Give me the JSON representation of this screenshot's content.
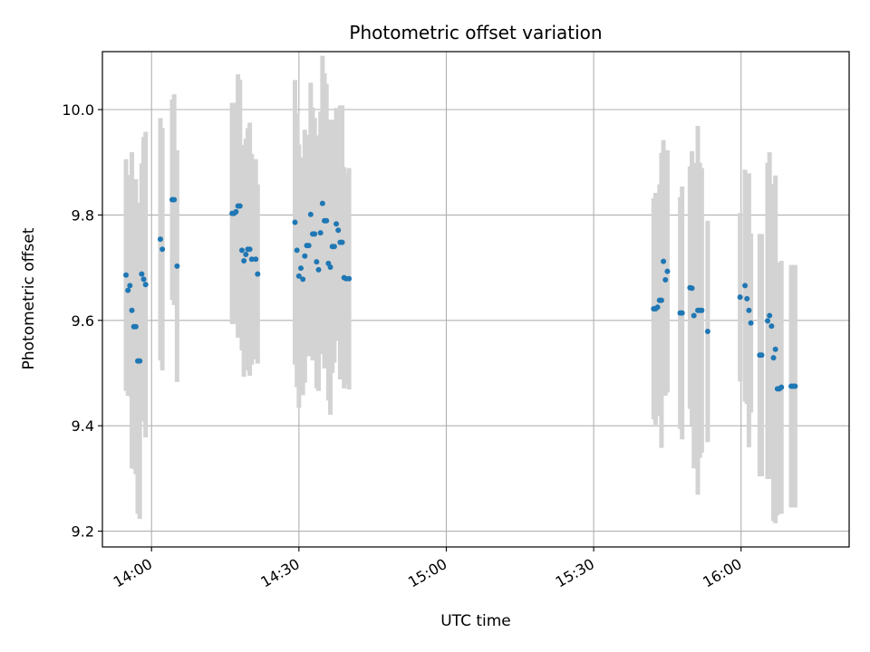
{
  "chart_data": {
    "type": "scatter",
    "title": "Photometric offset variation",
    "xlabel": "UTC time",
    "ylabel": "Photometric offset",
    "x_unit": "minutes after 00:00 UTC",
    "xlim": [
      "13:50",
      "16:22"
    ],
    "ylim": [
      9.17,
      10.11
    ],
    "x_ticks": [
      "14:00",
      "14:30",
      "15:00",
      "15:30",
      "16:00"
    ],
    "y_ticks": [
      "9.2",
      "9.4",
      "9.6",
      "9.8",
      "10.0"
    ],
    "grid": true,
    "marker_color": "#1f77b4",
    "errorbar_color": "#d3d3d3",
    "series": [
      {
        "x": [
          "13:54:48",
          "13:55:12",
          "13:55:36",
          "13:56:00",
          "13:56:24",
          "13:56:48",
          "13:57:12",
          "13:57:36",
          "13:58:00",
          "13:58:24",
          "13:58:48",
          "14:01:48",
          "14:02:12",
          "14:04:12",
          "14:04:36",
          "14:05:12",
          "14:16:24",
          "14:16:48",
          "14:17:12",
          "14:17:36",
          "14:18:00",
          "14:18:24",
          "14:18:48",
          "14:19:12",
          "14:19:36",
          "14:20:00",
          "14:20:24",
          "14:21:12",
          "14:21:36",
          "14:29:12",
          "14:29:36",
          "14:30:00",
          "14:30:24",
          "14:30:48",
          "14:31:12",
          "14:31:36",
          "14:32:00",
          "14:32:24",
          "14:32:48",
          "14:33:12",
          "14:33:36",
          "14:34:00",
          "14:34:24",
          "14:34:48",
          "14:35:12",
          "14:35:36",
          "14:36:00",
          "14:36:24",
          "14:36:48",
          "14:37:12",
          "14:37:36",
          "14:38:00",
          "14:38:24",
          "14:38:48",
          "14:39:12",
          "14:39:36",
          "14:40:12",
          "15:42:12",
          "15:42:36",
          "15:43:00",
          "15:43:24",
          "15:43:48",
          "15:44:12",
          "15:44:36",
          "15:45:00",
          "15:47:36",
          "15:48:00",
          "15:49:36",
          "15:50:00",
          "15:50:24",
          "15:51:12",
          "15:51:36",
          "15:52:00",
          "15:53:12",
          "15:59:48",
          "16:00:48",
          "16:01:12",
          "16:01:36",
          "16:02:00",
          "16:03:48",
          "16:04:12",
          "16:05:24",
          "16:05:48",
          "16:06:12",
          "16:06:36",
          "16:07:00",
          "16:07:24",
          "16:07:48",
          "16:08:12",
          "16:10:12",
          "16:10:36",
          "16:11:00"
        ],
        "y": [
          9.686,
          9.657,
          9.666,
          9.619,
          9.588,
          9.588,
          9.523,
          9.523,
          9.688,
          9.678,
          9.668,
          9.754,
          9.735,
          9.829,
          9.829,
          9.703,
          9.803,
          9.803,
          9.806,
          9.817,
          9.817,
          9.733,
          9.713,
          9.725,
          9.735,
          9.735,
          9.716,
          9.716,
          9.688,
          9.786,
          9.733,
          9.684,
          9.699,
          9.678,
          9.722,
          9.742,
          9.742,
          9.801,
          9.764,
          9.764,
          9.711,
          9.696,
          9.766,
          9.822,
          9.789,
          9.789,
          9.708,
          9.701,
          9.74,
          9.74,
          9.783,
          9.771,
          9.748,
          9.748,
          9.681,
          9.679,
          9.679,
          9.622,
          9.622,
          9.625,
          9.638,
          9.638,
          9.712,
          9.677,
          9.693,
          9.614,
          9.614,
          9.662,
          9.661,
          9.609,
          9.619,
          9.619,
          9.619,
          9.579,
          9.644,
          9.666,
          9.641,
          9.619,
          9.595,
          9.534,
          9.534,
          9.599,
          9.609,
          9.589,
          9.529,
          9.545,
          9.47,
          9.47,
          9.473,
          9.475,
          9.475,
          9.475
        ],
        "yerr": [
          0.22,
          0.2,
          0.21,
          0.3,
          0.27,
          0.28,
          0.29,
          0.3,
          0.21,
          0.27,
          0.29,
          0.23,
          0.23,
          0.19,
          0.2,
          0.22,
          0.21,
          0.21,
          0.2,
          0.25,
          0.24,
          0.19,
          0.22,
          0.22,
          0.23,
          0.24,
          0.2,
          0.19,
          0.17,
          0.27,
          0.26,
          0.25,
          0.21,
          0.22,
          0.24,
          0.2,
          0.21,
          0.25,
          0.24,
          0.22,
          0.24,
          0.23,
          0.23,
          0.28,
          0.28,
          0.26,
          0.26,
          0.28,
          0.24,
          0.22,
          0.22,
          0.21,
          0.26,
          0.26,
          0.21,
          0.2,
          0.21,
          0.21,
          0.22,
          0.2,
          0.22,
          0.28,
          0.23,
          0.22,
          0.23,
          0.22,
          0.24,
          0.23,
          0.26,
          0.29,
          0.35,
          0.28,
          0.27,
          0.21,
          0.16,
          0.22,
          0.2,
          0.26,
          0.17,
          0.23,
          0.23,
          0.3,
          0.31,
          0.27,
          0.31,
          0.33,
          0.24,
          0.23,
          0.24,
          0.23,
          0.23,
          0.23
        ]
      }
    ]
  }
}
